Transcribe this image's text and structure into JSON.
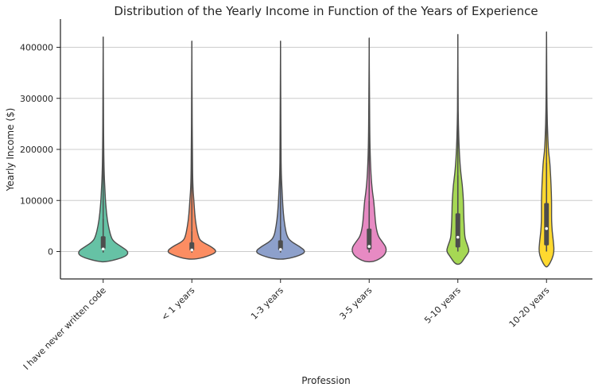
{
  "chart_data": {
    "type": "violin",
    "title": "Distribution of the Yearly Income in Function of the Years of Experience",
    "xlabel": "Profession",
    "ylabel": "Yearly Income ($)",
    "ylim": [
      -55000,
      455000
    ],
    "yticks": [
      0,
      100000,
      200000,
      300000,
      400000
    ],
    "ytick_labels": [
      "0",
      "100000",
      "200000",
      "300000",
      "400000"
    ],
    "grid": "horizontal",
    "categories": [
      "I have never written code",
      "< 1 years",
      "1-3 years",
      "3-5 years",
      "5-10 years",
      "10-20 years"
    ],
    "series": [
      {
        "color": "#66c2a5",
        "min": -20000,
        "max": 420000,
        "q1": 5000,
        "median": 5000,
        "q3": 30000,
        "whisker_low": -2000,
        "whisker_high": 65000,
        "density": [
          [
            -20000,
            0.2
          ],
          [
            -10000,
            0.9
          ],
          [
            0,
            1.0
          ],
          [
            10000,
            0.7
          ],
          [
            20000,
            0.4
          ],
          [
            30000,
            0.3
          ],
          [
            50000,
            0.2
          ],
          [
            75000,
            0.13
          ],
          [
            100000,
            0.09
          ],
          [
            120000,
            0.07
          ],
          [
            150000,
            0.04
          ],
          [
            200000,
            0.02
          ],
          [
            300000,
            0.01
          ],
          [
            420000,
            0.0
          ]
        ]
      },
      {
        "color": "#fc8d62",
        "min": -15000,
        "max": 412000,
        "q1": 2000,
        "median": 3000,
        "q3": 18000,
        "whisker_low": -2000,
        "whisker_high": 40000,
        "density": [
          [
            -15000,
            0.2
          ],
          [
            -8000,
            0.7
          ],
          [
            0,
            1.0
          ],
          [
            10000,
            0.75
          ],
          [
            20000,
            0.35
          ],
          [
            30000,
            0.25
          ],
          [
            50000,
            0.17
          ],
          [
            75000,
            0.11
          ],
          [
            100000,
            0.08
          ],
          [
            120000,
            0.05
          ],
          [
            150000,
            0.03
          ],
          [
            200000,
            0.02
          ],
          [
            300000,
            0.01
          ],
          [
            412000,
            0.0
          ]
        ]
      },
      {
        "color": "#8da0cb",
        "min": -15000,
        "max": 412000,
        "q1": 3000,
        "median": 4000,
        "q3": 22000,
        "whisker_low": -2000,
        "whisker_high": 50000,
        "density": [
          [
            -15000,
            0.2
          ],
          [
            -8000,
            0.75
          ],
          [
            0,
            1.0
          ],
          [
            10000,
            0.75
          ],
          [
            20000,
            0.4
          ],
          [
            30000,
            0.25
          ],
          [
            50000,
            0.17
          ],
          [
            75000,
            0.11
          ],
          [
            100000,
            0.08
          ],
          [
            120000,
            0.06
          ],
          [
            150000,
            0.03
          ],
          [
            200000,
            0.02
          ],
          [
            300000,
            0.01
          ],
          [
            412000,
            0.0
          ]
        ]
      },
      {
        "color": "#e78ac3",
        "min": -20000,
        "max": 418000,
        "q1": 4000,
        "median": 10000,
        "q3": 45000,
        "whisker_low": -2000,
        "whisker_high": 100000,
        "density": [
          [
            -20000,
            0.2
          ],
          [
            -10000,
            0.55
          ],
          [
            0,
            0.68
          ],
          [
            10000,
            0.65
          ],
          [
            20000,
            0.5
          ],
          [
            30000,
            0.35
          ],
          [
            50000,
            0.26
          ],
          [
            75000,
            0.22
          ],
          [
            100000,
            0.18
          ],
          [
            120000,
            0.12
          ],
          [
            150000,
            0.07
          ],
          [
            200000,
            0.03
          ],
          [
            300000,
            0.01
          ],
          [
            418000,
            0.0
          ]
        ]
      },
      {
        "color": "#a6d854",
        "min": -25000,
        "max": 425000,
        "q1": 8000,
        "median": 28000,
        "q3": 75000,
        "whisker_low": 0,
        "whisker_high": 150000,
        "density": [
          [
            -25000,
            0.1
          ],
          [
            -10000,
            0.3
          ],
          [
            0,
            0.45
          ],
          [
            10000,
            0.4
          ],
          [
            20000,
            0.32
          ],
          [
            30000,
            0.27
          ],
          [
            50000,
            0.25
          ],
          [
            75000,
            0.23
          ],
          [
            100000,
            0.22
          ],
          [
            130000,
            0.18
          ],
          [
            160000,
            0.1
          ],
          [
            200000,
            0.05
          ],
          [
            250000,
            0.02
          ],
          [
            300000,
            0.01
          ],
          [
            425000,
            0.0
          ]
        ]
      },
      {
        "color": "#ffd92f",
        "min": -30000,
        "max": 430000,
        "q1": 12000,
        "median": 45000,
        "q3": 95000,
        "whisker_low": 0,
        "whisker_high": 175000,
        "density": [
          [
            -30000,
            0.05
          ],
          [
            -15000,
            0.22
          ],
          [
            0,
            0.3
          ],
          [
            20000,
            0.27
          ],
          [
            40000,
            0.22
          ],
          [
            60000,
            0.2
          ],
          [
            80000,
            0.2
          ],
          [
            100000,
            0.2
          ],
          [
            130000,
            0.18
          ],
          [
            160000,
            0.15
          ],
          [
            180000,
            0.12
          ],
          [
            200000,
            0.07
          ],
          [
            250000,
            0.03
          ],
          [
            300000,
            0.015
          ],
          [
            430000,
            0.0
          ]
        ]
      }
    ]
  }
}
